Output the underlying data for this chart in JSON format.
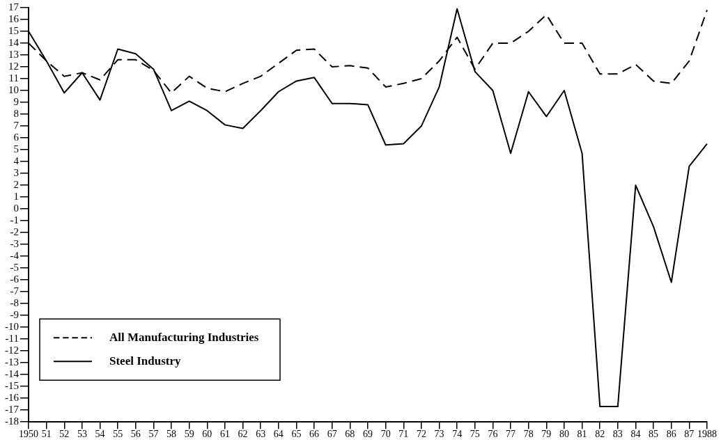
{
  "chart_data": {
    "type": "line",
    "categories": [
      "1950",
      "51",
      "52",
      "53",
      "54",
      "55",
      "56",
      "57",
      "58",
      "59",
      "60",
      "61",
      "62",
      "63",
      "64",
      "65",
      "66",
      "67",
      "68",
      "69",
      "70",
      "71",
      "72",
      "73",
      "74",
      "75",
      "76",
      "77",
      "78",
      "79",
      "80",
      "81",
      "82",
      "83",
      "84",
      "85",
      "86",
      "87",
      "1988"
    ],
    "series": [
      {
        "name": "All Manufacturing Industries",
        "color": "#000000",
        "line_style": "dashed",
        "values": [
          14.0,
          12.5,
          11.2,
          11.5,
          10.9,
          12.6,
          12.6,
          11.7,
          9.8,
          11.2,
          10.2,
          9.9,
          10.6,
          11.2,
          12.3,
          13.4,
          13.5,
          12.0,
          12.1,
          11.9,
          10.3,
          10.6,
          11.0,
          12.5,
          14.5,
          11.8,
          14.0,
          14.0,
          15.0,
          16.4,
          14.0,
          14.0,
          11.4,
          11.4,
          12.2,
          10.8,
          10.6,
          12.5,
          16.8
        ]
      },
      {
        "name": "Steel Industry",
        "color": "#000000",
        "line_style": "solid",
        "values": [
          15.0,
          12.5,
          9.8,
          11.5,
          9.2,
          13.5,
          13.1,
          11.8,
          8.3,
          9.1,
          8.3,
          7.1,
          6.8,
          8.3,
          9.9,
          10.8,
          11.1,
          8.9,
          8.9,
          8.8,
          5.4,
          5.5,
          7.0,
          10.3,
          16.9,
          11.6,
          10.0,
          4.7,
          9.9,
          7.8,
          10.0,
          4.7,
          -16.7,
          -16.7,
          2.0,
          -1.5,
          -6.2,
          3.6,
          5.5
        ]
      }
    ],
    "ylim": [
      -18,
      17
    ],
    "yticks": [
      -18,
      -17,
      -16,
      -15,
      -14,
      -13,
      -12,
      -11,
      -10,
      -9,
      -8,
      -7,
      -6,
      -5,
      -4,
      -3,
      -2,
      -1,
      0,
      1,
      2,
      3,
      4,
      5,
      6,
      7,
      8,
      9,
      10,
      11,
      12,
      13,
      14,
      15,
      16,
      17
    ],
    "grid": false,
    "legend": "bottom left",
    "marker": "none"
  }
}
